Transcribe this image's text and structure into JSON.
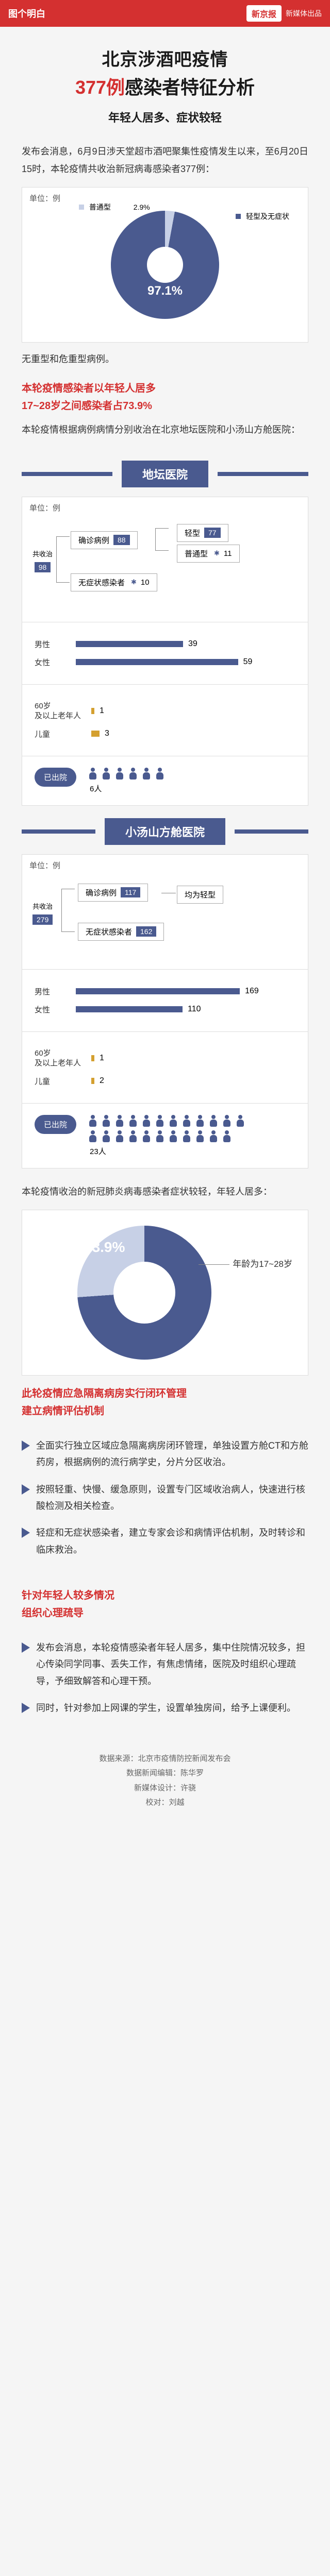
{
  "colors": {
    "accent_red": "#d43030",
    "accent_blue": "#4a5a8f",
    "light_blue": "#c7d0e6",
    "text_dark": "#1a1a1a",
    "text_body": "#333333",
    "grid_border": "#dddddd",
    "bg": "#f5f5f5"
  },
  "topbar": {
    "logo_text": "图个明白",
    "brand": "新京报",
    "subbrand": "新媒体出品"
  },
  "title": {
    "line1": "北京涉酒吧疫情",
    "line2_num": "377例",
    "line2_rest": "感染者特征分析",
    "line3": "年轻人居多、症状较轻"
  },
  "intro_paragraph": "发布会消息，6月9日涉天堂超市酒吧聚集性疫情发生以来，至6月20日15时，本轮疫情共收治新冠病毒感染者377例：",
  "donut_overall": {
    "unit": "单位：例",
    "main_label": "普通型",
    "main_pct": "2.9%",
    "sub_label": "轻型及无症状",
    "center_pct": "97.1%",
    "main_color": "#c7d0e6",
    "sub_color": "#4a5a8f"
  },
  "note_after_donut": "无重型和危重型病例。",
  "red_para_1": "本轮疫情感染者以年轻人居多\n17~28岁之间感染者占73.9%",
  "pre_hospital_text": "本轮疫情根据病例病情分别收治在北京地坛医院和小汤山方舱医院：",
  "hospital_a": {
    "title": "地坛医院",
    "unit": "单位：例",
    "root_label": "共收治",
    "root_val": "98",
    "confirmed_label": "确诊病例",
    "confirmed_val": "88",
    "asym_label": "无症状感染者",
    "asym_val": "10",
    "mild_label": "轻型",
    "mild_val": "77",
    "normal_label": "普通型",
    "normal_val": "11",
    "bars": {
      "male_label": "男性",
      "male_val": 39,
      "male_max": 60,
      "male_color": "#4a5a8f",
      "female_label": "女性",
      "female_val": 59,
      "female_max": 60,
      "female_color": "#4a5a8f",
      "elderly_label": "60岁\n及以上老年人",
      "elderly_val": 1,
      "elderly_color": "#d4a030",
      "child_label": "儿童",
      "child_val": 3,
      "child_color": "#d4a030"
    },
    "discharged_label": "已出院",
    "discharged_count": "6人",
    "discharged_icons": 6
  },
  "hospital_b": {
    "title": "小汤山方舱医院",
    "unit": "单位：例",
    "root_label": "共收治",
    "root_val": "279",
    "confirmed_label": "确诊病例",
    "confirmed_val": "117",
    "confirmed_note": "均为轻型",
    "asym_label": "无症状感染者",
    "asym_val": "162",
    "bars": {
      "male_label": "男性",
      "male_val": 169,
      "male_max": 170,
      "male_color": "#4a5a8f",
      "female_label": "女性",
      "female_val": 110,
      "female_max": 170,
      "female_color": "#4a5a8f",
      "elderly_label": "60岁\n及以上老年人",
      "elderly_val": 1,
      "elderly_color": "#d4a030",
      "child_label": "儿童",
      "child_val": 2,
      "child_color": "#d4a030"
    },
    "discharged_label": "已出院",
    "discharged_count": "23人",
    "discharged_icons": 23
  },
  "summary_line": "本轮疫情收治的新冠肺炎病毒感染者症状较轻，年轻人居多：",
  "donut_age": {
    "pct": "73.9%",
    "callout": "年龄为17~28岁",
    "main_color": "#4a5a8f",
    "rest_color": "#c7d0e6"
  },
  "red_para_2": "此轮疫情应急隔离病房实行闭环管理\n建立病情评估机制",
  "eval_bullets": [
    "全面实行独立区域应急隔离病房闭环管理，单独设置方舱CT和方舱药房，根据病例的流行病学史，分片分区收治。",
    "按照轻重、快慢、缓急原则，设置专门区域收治病人，快速进行核酸检测及相关检查。",
    "轻症和无症状感染者，建立专家会诊和病情评估机制，及时转诊和临床救治。"
  ],
  "red_para_3": "针对年轻人较多情况\n组织心理疏导",
  "psych_bullets": [
    "发布会消息，本轮疫情感染者年轻人居多，集中住院情况较多，担心传染同学同事、丢失工作，有焦虑情绪，医院及时组织心理疏导，予细致解答和心理干预。",
    "同时，针对参加上网课的学生，设置单独房间，给予上课便利。"
  ],
  "credits": {
    "src": "数据来源：北京市疫情防控新闻发布会",
    "editor": "数据新闻编辑：陈华罗",
    "design": "新媒体设计：许骁",
    "proof": "校对：刘越"
  }
}
